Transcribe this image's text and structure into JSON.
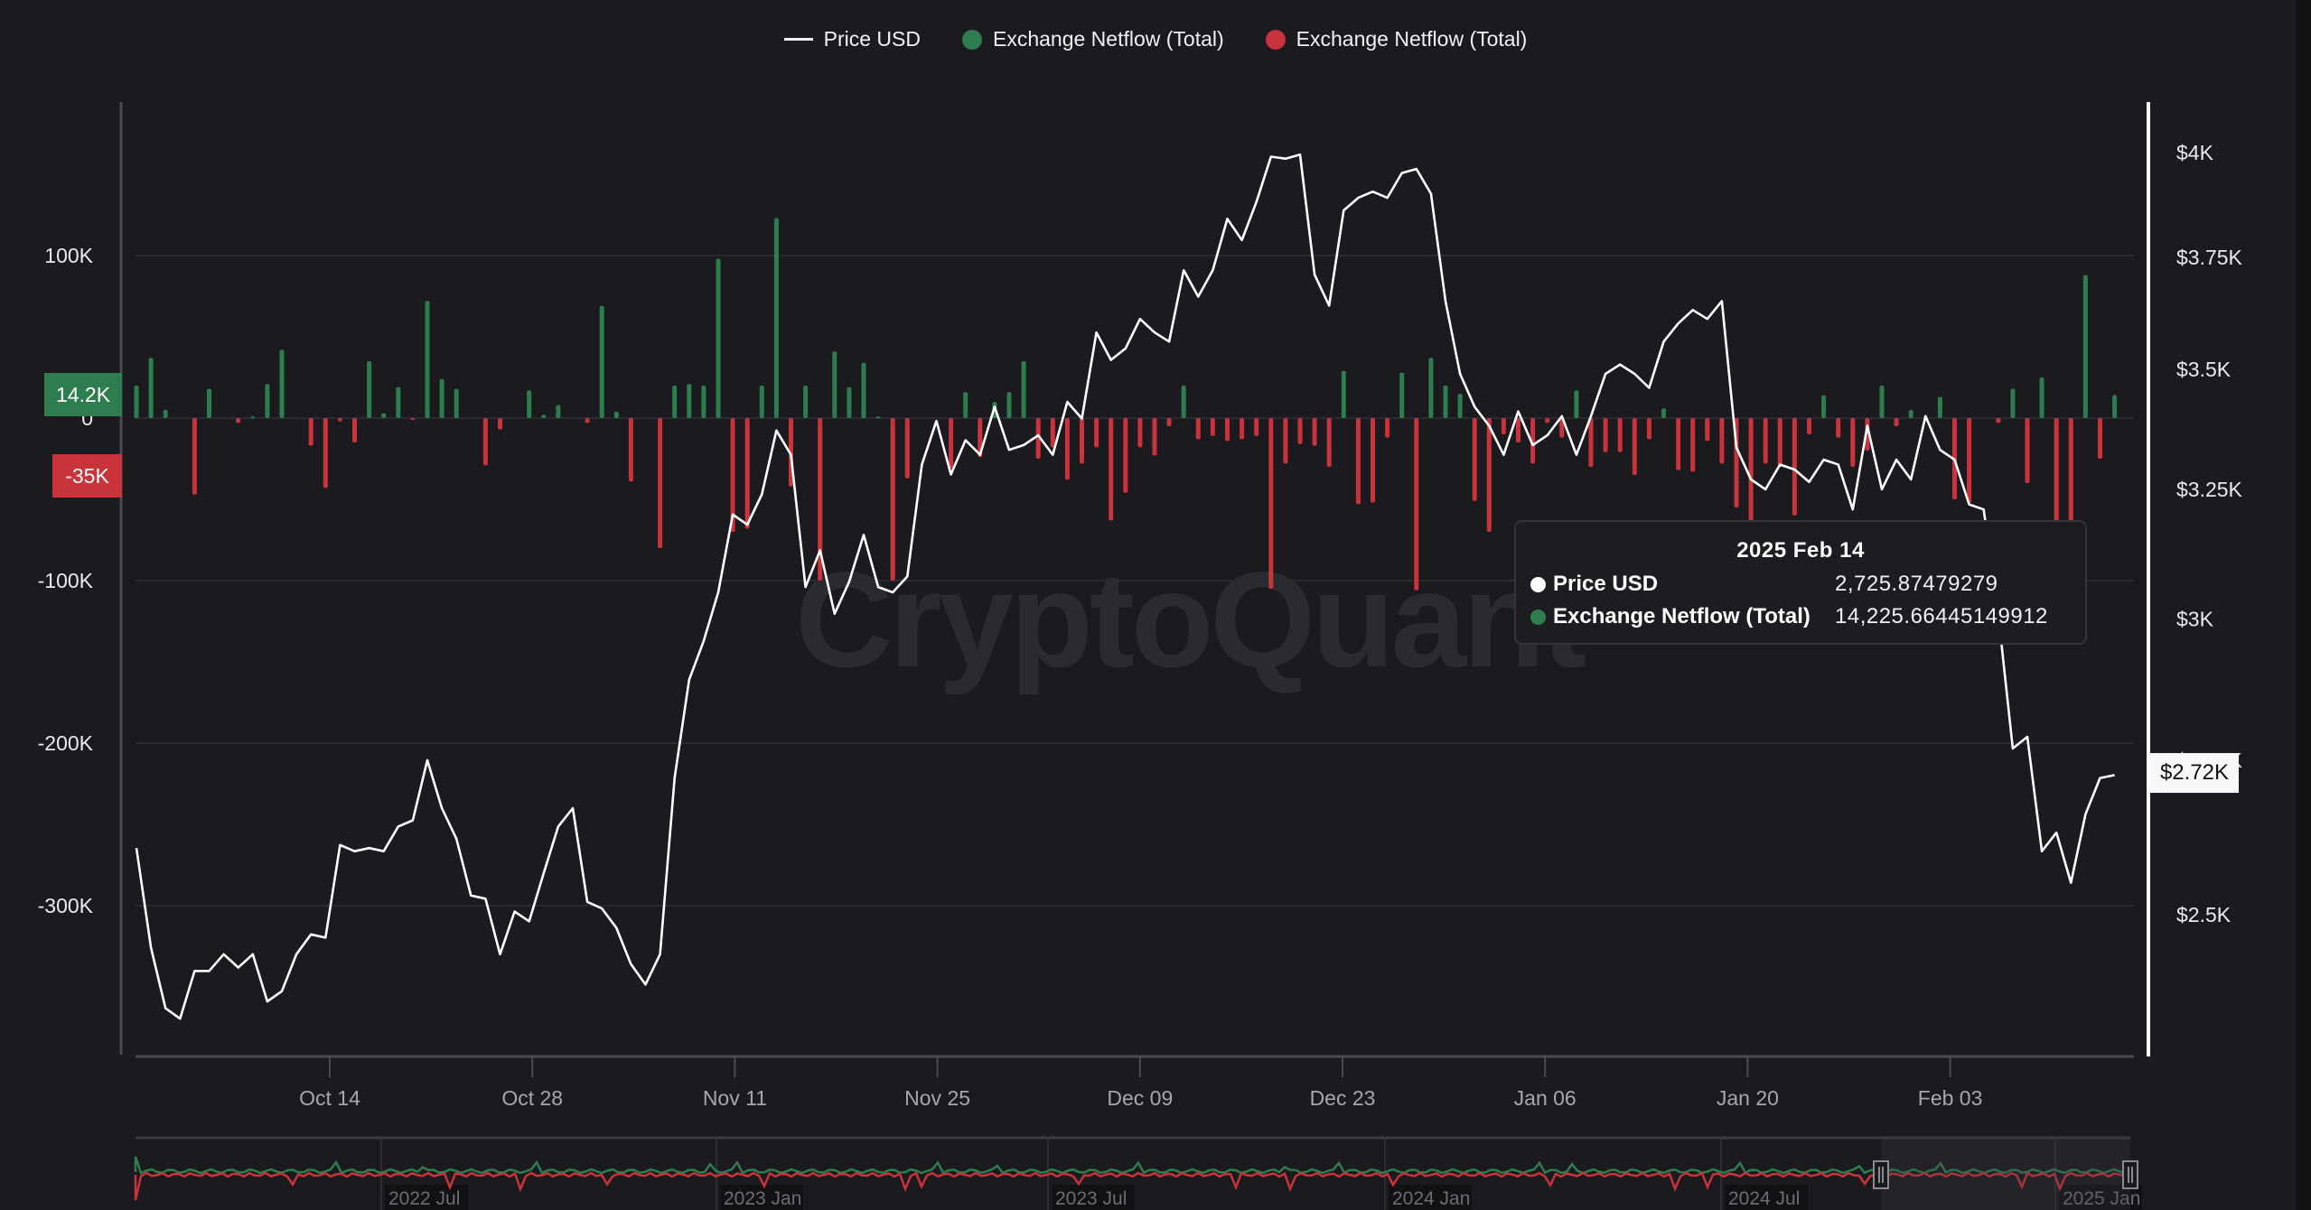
{
  "legend": {
    "price_label": "Price USD",
    "inflow_label": "Exchange Netflow (Total)",
    "outflow_label": "Exchange Netflow (Total)"
  },
  "colors": {
    "background": "#1b1b1f",
    "price_line": "#ffffff",
    "positive": "#2e7d4f",
    "negative": "#c9333a",
    "grid": "#2a2a30",
    "axis": "#4a4a55"
  },
  "watermark": "CryptoQuant",
  "badges": {
    "netflow_current": "14.2K",
    "netflow_marker": "-35K",
    "price_current": "$2.72K"
  },
  "tooltip": {
    "title": "2025 Feb 14",
    "price_label": "Price USD",
    "price_value": "2,725.87479279",
    "netflow_label": "Exchange Netflow (Total)",
    "netflow_value": "14,225.66445149912"
  },
  "navigator": {
    "labels": [
      "2022 Jul",
      "2023 Jan",
      "2023 Jul",
      "2024 Jan",
      "2024 Jul",
      "2025 Jan"
    ]
  },
  "chart_data": {
    "type": "bar+line",
    "title": "",
    "x_start": "2024-10-01",
    "x_end": "2025-02-14",
    "x_tick_labels": [
      "Oct 14",
      "Oct 28",
      "Nov 11",
      "Nov 25",
      "Dec 09",
      "Dec 23",
      "Jan 06",
      "Jan 20",
      "Feb 03"
    ],
    "left_axis": {
      "label": "Exchange Netflow (Total)",
      "ticks": [
        "100K",
        "0",
        "-100K",
        "-200K",
        "-300K"
      ],
      "tick_values": [
        100000,
        0,
        -100000,
        -200000,
        -300000
      ]
    },
    "right_axis": {
      "label": "Price USD",
      "scale": "log",
      "ticks": [
        "$4K",
        "$3.75K",
        "$3.5K",
        "$3.25K",
        "$3K",
        "$2.75K",
        "$2.5K"
      ],
      "tick_values": [
        4000,
        3750,
        3500,
        3250,
        3000,
        2750,
        2500
      ]
    },
    "legend_position": "top",
    "grid": true,
    "series": [
      {
        "name": "Price USD",
        "type": "line",
        "axis": "right",
        "values": [
          2605,
          2450,
          2360,
          2345,
          2415,
          2415,
          2440,
          2420,
          2440,
          2370,
          2385,
          2440,
          2470,
          2465,
          2610,
          2600,
          2605,
          2600,
          2640,
          2650,
          2750,
          2670,
          2620,
          2530,
          2525,
          2440,
          2505,
          2490,
          2565,
          2640,
          2670,
          2520,
          2510,
          2480,
          2425,
          2395,
          2440,
          2720,
          2890,
          2960,
          3050,
          3200,
          3180,
          3240,
          3370,
          3320,
          3060,
          3130,
          3010,
          3070,
          3160,
          3060,
          3050,
          3080,
          3300,
          3390,
          3280,
          3350,
          3320,
          3420,
          3330,
          3340,
          3360,
          3320,
          3430,
          3395,
          3580,
          3520,
          3545,
          3610,
          3580,
          3560,
          3720,
          3660,
          3720,
          3840,
          3790,
          3880,
          3990,
          3985,
          3995,
          3710,
          3640,
          3860,
          3890,
          3905,
          3890,
          3950,
          3960,
          3900,
          3650,
          3490,
          3420,
          3380,
          3320,
          3410,
          3340,
          3360,
          3400,
          3320,
          3400,
          3490,
          3510,
          3490,
          3460,
          3560,
          3600,
          3630,
          3610,
          3650,
          3335,
          3270,
          3250,
          3300,
          3290,
          3265,
          3310,
          3300,
          3210,
          3380,
          3250,
          3310,
          3270,
          3400,
          3330,
          3310,
          3220,
          3210,
          3010,
          2770,
          2790,
          2600,
          2630,
          2550,
          2660,
          2720,
          2725
        ]
      },
      {
        "name": "Exchange Netflow (Total)",
        "type": "bar",
        "axis": "left",
        "values": [
          20000,
          37000,
          5000,
          0,
          -47000,
          18000,
          0,
          -3000,
          1000,
          21000,
          42000,
          0,
          -17000,
          -43000,
          -2000,
          -15000,
          35000,
          3000,
          19000,
          -1000,
          72000,
          24000,
          18000,
          0,
          -29000,
          -7000,
          0,
          17000,
          2000,
          8000,
          0,
          -3000,
          69000,
          4000,
          -39000,
          0,
          -80000,
          20000,
          21000,
          20000,
          98000,
          -70000,
          -68000,
          20000,
          123000,
          -42000,
          20000,
          -100000,
          41000,
          19000,
          34000,
          1000,
          -100000,
          -37000,
          0,
          0,
          -31000,
          16000,
          -24000,
          10000,
          16000,
          35000,
          -25000,
          -18000,
          -38000,
          -28000,
          -18000,
          -63000,
          -46000,
          -18000,
          -23000,
          -5000,
          20000,
          -13000,
          -11000,
          -14000,
          -13000,
          -11000,
          -105000,
          -28000,
          -16000,
          -17000,
          -30000,
          29000,
          -53000,
          -52000,
          -12000,
          28000,
          -106000,
          37000,
          20000,
          15000,
          -51000,
          -70000,
          -10000,
          -15000,
          -28000,
          -3000,
          -12000,
          17000,
          -30000,
          -21000,
          -21000,
          -35000,
          -13000,
          6000,
          -32000,
          -33000,
          -14000,
          -28000,
          -55000,
          -69000,
          -28000,
          -30000,
          -60000,
          -10000,
          14000,
          -12000,
          -30000,
          -20000,
          20000,
          -5000,
          5000,
          -2000,
          13000,
          -50000,
          -52000,
          0,
          -3000,
          18000,
          -40000,
          25000,
          -68000,
          -68000,
          88000,
          -25000,
          14200
        ]
      }
    ]
  }
}
